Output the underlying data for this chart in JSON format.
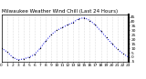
{
  "title": "Milwaukee Weather Wind Chill (Last 24 Hours)",
  "x": [
    0,
    1,
    2,
    3,
    4,
    5,
    6,
    7,
    8,
    9,
    10,
    11,
    12,
    13,
    14,
    15,
    16,
    17,
    18,
    19,
    20,
    21,
    22,
    23
  ],
  "y": [
    10,
    6,
    0,
    -3,
    -2,
    0,
    3,
    10,
    18,
    25,
    30,
    33,
    36,
    39,
    43,
    44,
    41,
    36,
    29,
    22,
    15,
    9,
    4,
    0
  ],
  "line_color": "#0000dd",
  "bg_color": "#ffffff",
  "ylim": [
    -5,
    48
  ],
  "xlim": [
    0,
    23
  ],
  "yticks": [
    -5,
    0,
    5,
    10,
    15,
    20,
    25,
    30,
    35,
    40,
    45
  ],
  "xticks": [
    0,
    1,
    2,
    3,
    4,
    5,
    6,
    7,
    8,
    9,
    10,
    11,
    12,
    13,
    14,
    15,
    16,
    17,
    18,
    19,
    20,
    21,
    22,
    23
  ],
  "title_fontsize": 4.0,
  "tick_fontsize": 3.2,
  "grid_color": "#bbbbbb",
  "marker_color": "#000000"
}
